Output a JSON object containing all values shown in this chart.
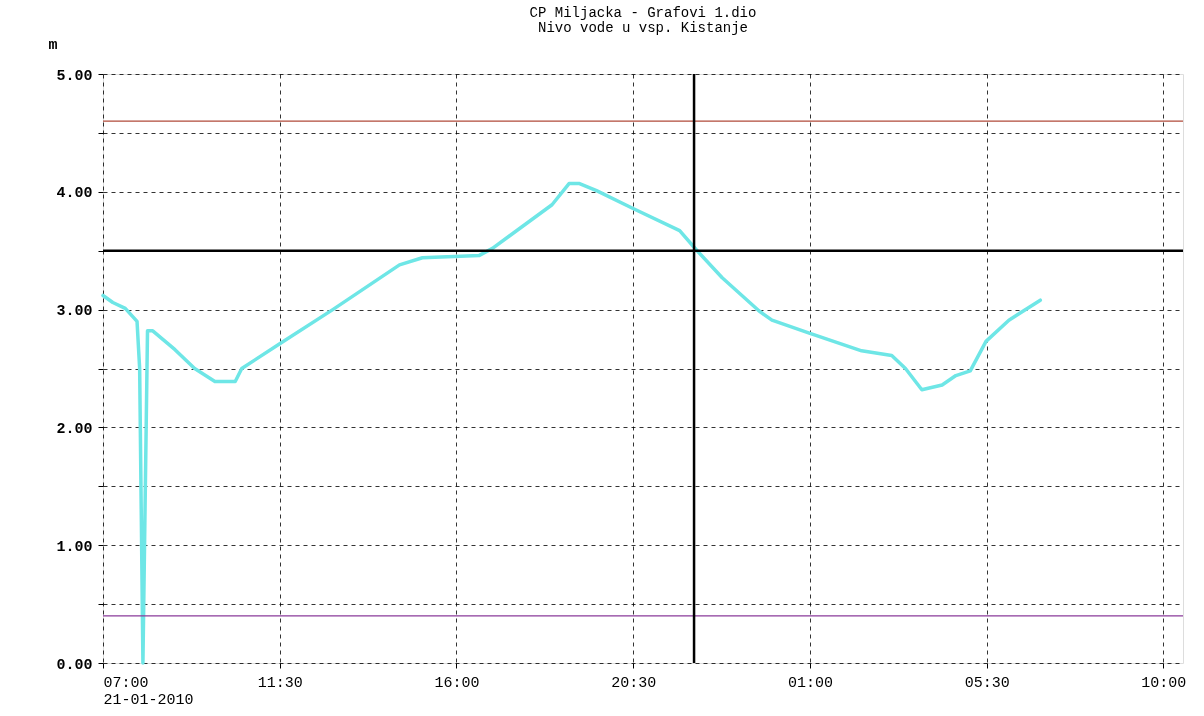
{
  "chart_data": {
    "type": "line",
    "title": "CP Miljacka - Grafovi 1.dio",
    "subtitle": "Nivo vode u vsp. Kistanje",
    "ylabel": "m",
    "x": [
      "2010-01-21T07:00",
      "2010-01-21T07:15",
      "2010-01-21T07:34",
      "2010-01-21T07:52",
      "2010-01-21T07:56",
      "2010-01-21T08:01",
      "2010-01-21T08:08",
      "2010-01-21T08:16",
      "2010-01-21T08:50",
      "2010-01-21T09:20",
      "2010-01-21T09:51",
      "2010-01-21T10:22",
      "2010-01-21T10:32",
      "2010-01-21T11:30",
      "2010-01-21T12:51",
      "2010-01-21T14:33",
      "2010-01-21T15:08",
      "2010-01-21T16:35",
      "2010-01-21T16:55",
      "2010-01-21T18:26",
      "2010-01-21T18:52",
      "2010-01-21T19:08",
      "2010-01-21T19:34",
      "2010-01-21T20:29",
      "2010-01-21T21:41",
      "2010-01-21T22:06",
      "2010-01-21T22:46",
      "2010-01-21T23:42",
      "2010-01-22T00:02",
      "2010-01-22T00:59",
      "2010-01-22T02:19",
      "2010-01-22T03:05",
      "2010-01-22T03:26",
      "2010-01-22T03:51",
      "2010-01-22T04:22",
      "2010-01-22T04:43",
      "2010-01-22T05:05",
      "2010-01-22T05:29",
      "2010-01-22T06:04",
      "2010-01-22T06:52"
    ],
    "series": [
      {
        "color": "#6ee6e6",
        "values": [
          3.12,
          3.06,
          3.01,
          2.9,
          2.5,
          0.0,
          2.82,
          2.82,
          2.66,
          2.5,
          2.39,
          2.39,
          2.5,
          2.71,
          3.0,
          3.38,
          3.44,
          3.46,
          3.52,
          3.89,
          4.07,
          4.07,
          4.01,
          3.86,
          3.67,
          3.51,
          3.27,
          2.99,
          2.91,
          2.8,
          2.65,
          2.61,
          2.5,
          2.32,
          2.36,
          2.44,
          2.48,
          2.73,
          2.91,
          3.08
        ]
      }
    ],
    "xlim": [
      "2010-01-21T07:00",
      "2010-01-22T10:30"
    ],
    "xticks": [
      {
        "value": "2010-01-21T07:00",
        "label": "07:00\n21-01-2010"
      },
      {
        "value": "2010-01-21T11:30",
        "label": "11:30"
      },
      {
        "value": "2010-01-21T16:00",
        "label": "16:00"
      },
      {
        "value": "2010-01-21T20:30",
        "label": "20:30"
      },
      {
        "value": "2010-01-22T01:00",
        "label": "01:00"
      },
      {
        "value": "2010-01-22T05:30",
        "label": "05:30"
      },
      {
        "value": "2010-01-22T10:00",
        "label": "10:00"
      }
    ],
    "ylim": [
      0,
      5
    ],
    "yticks": [
      {
        "value": 0,
        "label": "0.00"
      },
      {
        "value": 0.5,
        "label": null
      },
      {
        "value": 1,
        "label": "1.00"
      },
      {
        "value": 1.5,
        "label": null
      },
      {
        "value": 2,
        "label": "2.00"
      },
      {
        "value": 2.5,
        "label": null
      },
      {
        "value": 3,
        "label": "3.00"
      },
      {
        "value": 3.5,
        "label": null
      },
      {
        "value": 4,
        "label": "4.00"
      },
      {
        "value": 4.5,
        "label": null
      },
      {
        "value": 5,
        "label": "5.00"
      }
    ],
    "ref_lines": [
      {
        "axis": "y",
        "value": 4.6,
        "color": "#b04a3a"
      },
      {
        "axis": "y",
        "value": 0.4,
        "color": "#8a3a9a"
      },
      {
        "axis": "y",
        "value": 3.5,
        "color": "#000000"
      },
      {
        "axis": "x",
        "value": "2010-01-21T22:03",
        "color": "#000000"
      }
    ],
    "grid": true,
    "line_style": "solid",
    "marker": "none"
  }
}
